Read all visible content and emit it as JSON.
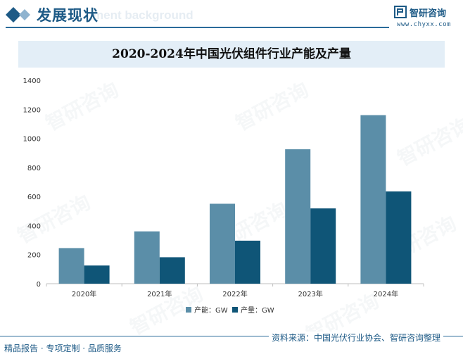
{
  "header": {
    "title": "发展现状",
    "bg_text": "ment background"
  },
  "logo": {
    "name": "智研咨询",
    "url": "www.chyxx.com"
  },
  "watermark": "智研咨询",
  "chart_data": {
    "type": "bar",
    "title": "2020-2024年中国光伏组件行业产能及产量",
    "categories": [
      "2020年",
      "2021年",
      "2022年",
      "2023年",
      "2024年"
    ],
    "series": [
      {
        "name": "产能：GW",
        "values": [
          245,
          360,
          550,
          925,
          1160
        ],
        "color": "#5b8ea8"
      },
      {
        "name": "产量：GW",
        "values": [
          125,
          182,
          296,
          518,
          635
        ],
        "color": "#0f5577"
      }
    ],
    "ylim": [
      0,
      1400
    ],
    "yticks": [
      0,
      200,
      400,
      600,
      800,
      1000,
      1200,
      1400
    ],
    "grid": false,
    "legend": "bottom"
  },
  "footer": {
    "left": "精品报告 · 专项定制 · 品质服务",
    "right": "资料来源：中国光伏行业协会、智研咨询整理"
  }
}
